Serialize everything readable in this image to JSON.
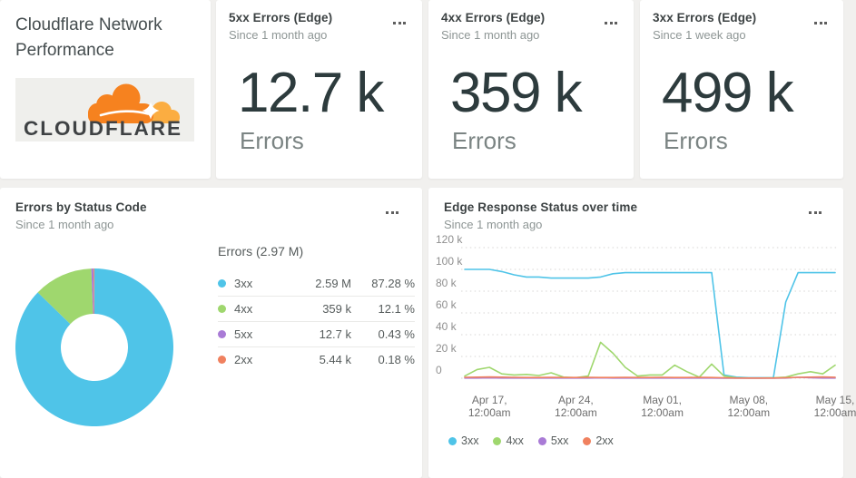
{
  "page": {
    "background": "#f1f0ee",
    "card_background": "#ffffff"
  },
  "icons": {
    "more_menu": "three-dots",
    "legend_marker": "filled-circle"
  },
  "header_card": {
    "title": "Cloudflare Network Performance",
    "logo_text": "CLOUDFLARE",
    "logo_cloud_primary": "#f6821f",
    "logo_cloud_secondary": "#fbad41",
    "logo_text_color": "#3f4244"
  },
  "stat_cards": [
    {
      "title": "5xx Errors (Edge)",
      "subtitle": "Since 1 month ago",
      "value": "12.7 k",
      "unit": "Errors"
    },
    {
      "title": "4xx Errors (Edge)",
      "subtitle": "Since 1 month ago",
      "value": "359 k",
      "unit": "Errors"
    },
    {
      "title": "3xx Errors (Edge)",
      "subtitle": "Since 1 week ago",
      "value": "499 k",
      "unit": "Errors"
    }
  ],
  "donut_card": {
    "title": "Errors by Status Code",
    "subtitle": "Since 1 month ago"
  },
  "line_card": {
    "title": "Edge Response Status over time",
    "subtitle": "Since 1 month ago"
  },
  "chart_data": [
    {
      "type": "pie",
      "donut": true,
      "title": "Errors by Status Code",
      "subtitle": "Since 1 month ago",
      "legend_header": "Errors (2.97 M)",
      "legend_position": "right",
      "slices": [
        {
          "label": "3xx",
          "value_label": "2.59 M",
          "percent": 87.28,
          "percent_label": "87.28 %",
          "color": "#4fc4e8"
        },
        {
          "label": "4xx",
          "value_label": "359 k",
          "percent": 12.1,
          "percent_label": "12.1 %",
          "color": "#9fd76e"
        },
        {
          "label": "5xx",
          "value_label": "12.7 k",
          "percent": 0.43,
          "percent_label": "0.43 %",
          "color": "#a97bd6"
        },
        {
          "label": "2xx",
          "value_label": "5.44 k",
          "percent": 0.18,
          "percent_label": "0.18 %",
          "color": "#f0815f"
        }
      ]
    },
    {
      "type": "line",
      "title": "Edge Response Status over time",
      "subtitle": "Since 1 month ago",
      "xlabel": "",
      "ylabel": "",
      "ylim_k": [
        0,
        120
      ],
      "grid": "dotted-horizontal",
      "legend_position": "bottom-left",
      "y_ticks": [
        "0",
        "20 k",
        "40 k",
        "60 k",
        "80 k",
        "100 k",
        "120 k"
      ],
      "x_ticks": [
        {
          "index": 2,
          "line1": "Apr 17,",
          "line2": "12:00am"
        },
        {
          "index": 9,
          "line1": "Apr 24,",
          "line2": "12:00am"
        },
        {
          "index": 16,
          "line1": "May 01,",
          "line2": "12:00am"
        },
        {
          "index": 23,
          "line1": "May 08,",
          "line2": "12:00am"
        },
        {
          "index": 30,
          "line1": "May 15,",
          "line2": "12:00am"
        }
      ],
      "x_span_days": [
        "Apr 15",
        "May 15"
      ],
      "unit": "k errors per day",
      "series": [
        {
          "name": "3xx",
          "color": "#4fc4e8",
          "values_k": [
            100,
            100,
            100,
            98,
            95,
            93,
            93,
            92,
            92,
            92,
            92,
            93,
            96,
            97,
            97,
            97,
            97,
            97,
            97,
            97,
            97,
            3,
            1,
            0.5,
            0.5,
            0.5,
            70,
            97,
            97,
            97,
            97
          ]
        },
        {
          "name": "4xx",
          "color": "#9fd76e",
          "values_k": [
            2,
            8,
            10,
            4,
            3,
            3.5,
            2.5,
            5,
            1,
            0.5,
            2,
            33,
            23,
            10,
            2,
            3,
            3,
            12,
            6,
            1,
            13,
            2,
            0.3,
            0.2,
            0.2,
            0.3,
            1,
            4,
            6,
            4,
            12
          ]
        },
        {
          "name": "5xx",
          "color": "#a97bd6",
          "values_k": [
            0.2,
            0.2,
            0.3,
            0.2,
            0.2,
            0.2,
            0.2,
            0.2,
            0.2,
            0.2,
            0.2,
            0.3,
            0.2,
            0.2,
            0.2,
            0.2,
            0.2,
            0.2,
            0.2,
            0.2,
            0.2,
            0.1,
            0.1,
            0.1,
            0.1,
            0.1,
            0.2,
            0.8,
            0.5,
            0.2,
            0.2
          ]
        },
        {
          "name": "2xx",
          "color": "#f0815f",
          "values_k": [
            0.8,
            1,
            1.2,
            1,
            0.8,
            0.7,
            0.7,
            0.8,
            0.7,
            0.7,
            0.8,
            0.7,
            0.7,
            0.8,
            0.7,
            0.7,
            0.8,
            0.7,
            0.7,
            0.8,
            0.7,
            0.4,
            0.2,
            0.2,
            0.2,
            0.2,
            0.5,
            0.8,
            1,
            1.2,
            0.9
          ]
        }
      ]
    }
  ]
}
